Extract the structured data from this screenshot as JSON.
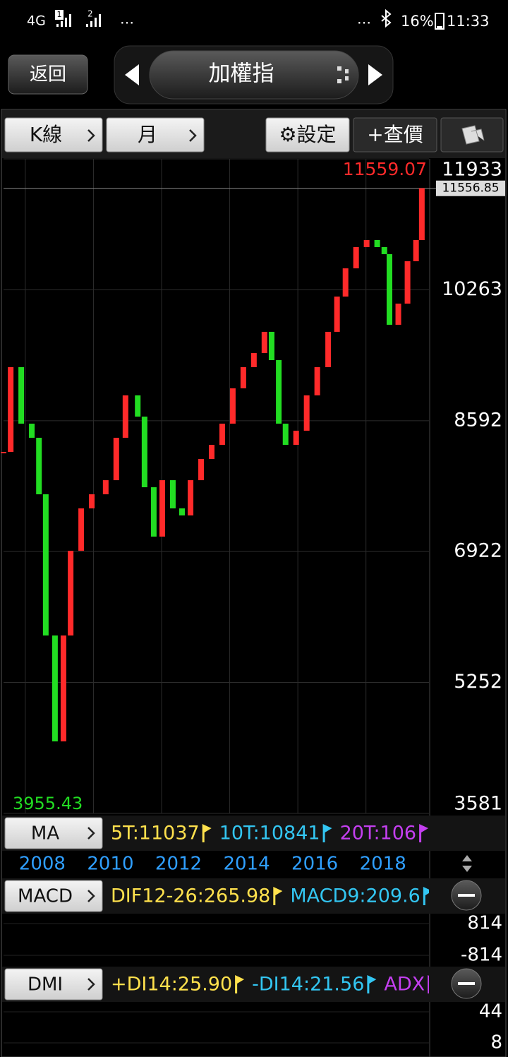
{
  "status_bar": {
    "network": "4G",
    "sim1": "1",
    "sim2": "2",
    "more_left": "…",
    "more_right": "…",
    "battery": "16%",
    "time": "11:33"
  },
  "header": {
    "back": "返回",
    "title": "加權指"
  },
  "toolbar": {
    "chart_type": "K線",
    "period": "月",
    "settings": "⚙設定",
    "quote": "+查價"
  },
  "chart_data": {
    "type": "candlestick",
    "x": [
      2007.36,
      2007.57,
      2007.88,
      2008.19,
      2008.4,
      2008.6,
      2008.87,
      2009.12,
      2009.33,
      2009.64,
      2009.95,
      2010.36,
      2010.67,
      2010.94,
      2011.3,
      2011.5,
      2011.77,
      2012.02,
      2012.33,
      2012.6,
      2012.85,
      2013.16,
      2013.47,
      2013.78,
      2014.09,
      2014.4,
      2014.71,
      2015.02,
      2015.23,
      2015.44,
      2015.64,
      2015.95,
      2016.26,
      2016.57,
      2016.89,
      2017.15,
      2017.4,
      2017.71,
      2018.02,
      2018.33,
      2018.54,
      2018.69,
      2018.95,
      2019.22,
      2019.47,
      2019.64
    ],
    "values": [
      8194,
      9275,
      8554,
      8374,
      7653,
      5851,
      4500,
      5851,
      6932,
      7473,
      7653,
      7833,
      8374,
      8915,
      8644,
      7743,
      7113,
      7833,
      7473,
      7383,
      7833,
      8104,
      8284,
      8554,
      9005,
      9275,
      9455,
      9726,
      9365,
      8554,
      8284,
      8464,
      8915,
      9275,
      9726,
      10176,
      10536,
      10807,
      10897,
      10807,
      10717,
      9816,
      10086,
      10627,
      10897,
      11559
    ],
    "xlim": [
      2007.36,
      2019.85
    ],
    "xticks": [
      2008,
      2010,
      2012,
      2014,
      2016,
      2018
    ],
    "ylim": [
      3581,
      11933
    ],
    "yticks": [
      11933,
      10263,
      8592,
      6922,
      5252,
      3581
    ],
    "max_label": 11559.07,
    "min_label": 3955.43,
    "last_price": 11556.85,
    "up_color": "#ff2a2a",
    "down_color": "#22dd22",
    "grid": true
  },
  "ma_bar": {
    "button": "MA",
    "items": [
      {
        "label": "5T:11037",
        "color": "#ffe14d"
      },
      {
        "label": "10T:10841",
        "color": "#33c6f2"
      },
      {
        "label": "20T:106",
        "color": "#c43ff0"
      }
    ]
  },
  "macd_bar": {
    "button": "MACD",
    "items": [
      {
        "label": "DIF12-26:265.98",
        "color": "#ffe14d"
      },
      {
        "label": "MACD9:209.6",
        "color": "#33c6f2"
      }
    ],
    "ylim": [
      -814,
      814
    ],
    "yticks": [
      814,
      -814
    ]
  },
  "dmi_bar": {
    "button": "DMI",
    "items": [
      {
        "label": "+DI14:25.90",
        "color": "#ffe14d"
      },
      {
        "label": "-DI14:21.56",
        "color": "#33c6f2"
      },
      {
        "label": "ADX",
        "color": "#c43ff0"
      }
    ],
    "ylim": [
      8,
      44
    ],
    "yticks": [
      44,
      8
    ]
  }
}
